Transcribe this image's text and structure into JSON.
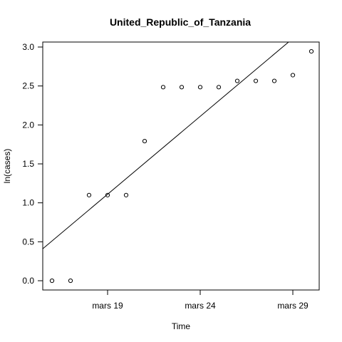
{
  "chart_data": {
    "type": "scatter",
    "title": "United_Republic_of_Tanzania",
    "xlabel": "Time",
    "ylabel": "ln(cases)",
    "x": [
      "2020-03-16",
      "2020-03-17",
      "2020-03-18",
      "2020-03-19",
      "2020-03-20",
      "2020-03-21",
      "2020-03-22",
      "2020-03-23",
      "2020-03-24",
      "2020-03-25",
      "2020-03-26",
      "2020-03-27",
      "2020-03-28",
      "2020-03-29",
      "2020-03-30"
    ],
    "y": [
      0.0,
      0.0,
      1.099,
      1.099,
      1.099,
      1.792,
      2.485,
      2.485,
      2.485,
      2.485,
      2.565,
      2.565,
      2.565,
      2.639,
      2.944
    ],
    "fit_line": {
      "intercept_at_x0": 0.41,
      "slope_per_day": 0.2
    },
    "x_range": [
      "2020-03-15",
      "2020-03-31"
    ],
    "ylim": [
      0.0,
      3.0
    ],
    "x_ticks": [
      {
        "date": "2020-03-19",
        "label": "mars 19"
      },
      {
        "date": "2020-03-24",
        "label": "mars 24"
      },
      {
        "date": "2020-03-29",
        "label": "mars 29"
      }
    ],
    "y_ticks": [
      {
        "value": 0.0,
        "label": "0.0"
      },
      {
        "value": 0.5,
        "label": "0.5"
      },
      {
        "value": 1.0,
        "label": "1.0"
      },
      {
        "value": 1.5,
        "label": "1.5"
      },
      {
        "value": 2.0,
        "label": "2.0"
      },
      {
        "value": 2.5,
        "label": "2.5"
      },
      {
        "value": 3.0,
        "label": "3.0"
      }
    ],
    "grid": false,
    "legend": "none"
  }
}
